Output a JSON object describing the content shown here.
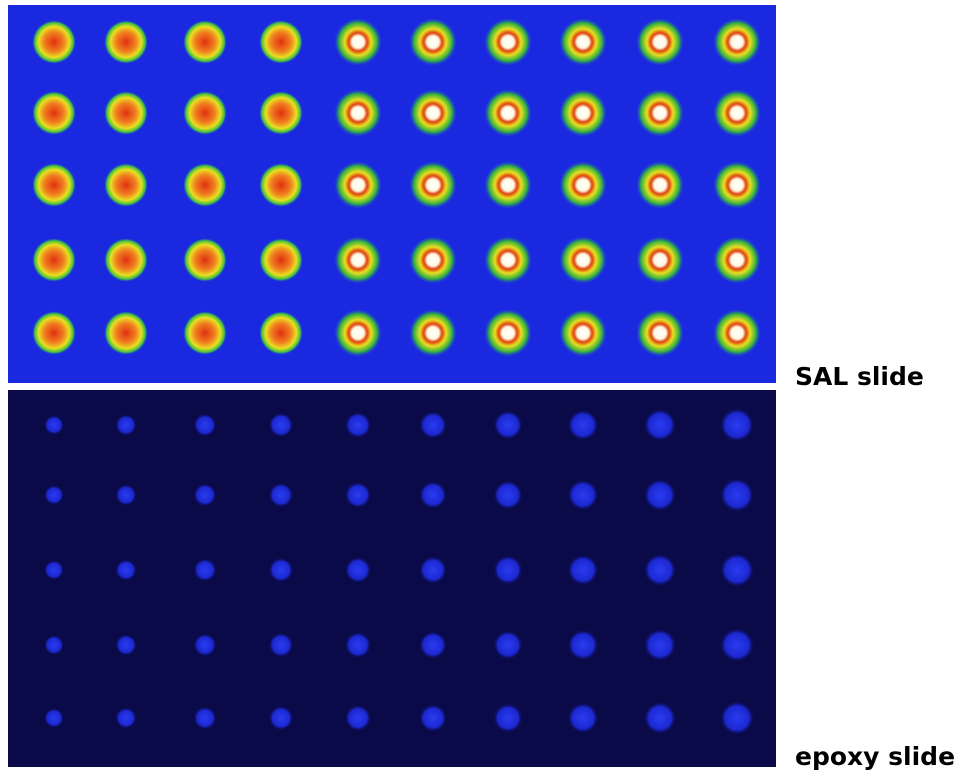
{
  "labels": {
    "top": "SAL slide",
    "bottom": "epoxy slide"
  }
}
